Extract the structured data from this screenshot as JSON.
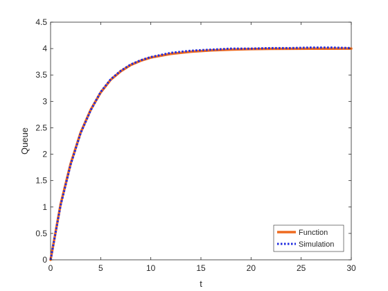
{
  "chart_data": {
    "type": "line",
    "xlabel": "t",
    "ylabel": "Queue",
    "xlim": [
      0,
      30
    ],
    "ylim": [
      0,
      4.5
    ],
    "x_ticks": [
      "0",
      "5",
      "10",
      "15",
      "20",
      "25",
      "30"
    ],
    "y_ticks": [
      "0",
      "0.5",
      "1",
      "1.5",
      "2",
      "2.5",
      "3",
      "3.5",
      "4",
      "4.5"
    ],
    "grid": false,
    "legend_position": "bottom-right",
    "x": [
      0,
      1,
      2,
      3,
      4,
      5,
      6,
      7,
      8,
      9,
      10,
      12,
      14,
      16,
      18,
      20,
      22,
      24,
      26,
      28,
      30
    ],
    "series": [
      {
        "name": "Function",
        "color": "#EE6A1F",
        "style": "solid",
        "values": [
          0,
          1.05,
          1.82,
          2.41,
          2.84,
          3.17,
          3.41,
          3.57,
          3.69,
          3.77,
          3.83,
          3.9,
          3.94,
          3.965,
          3.98,
          3.99,
          3.995,
          3.997,
          3.998,
          3.999,
          4.0
        ]
      },
      {
        "name": "Simulation",
        "color": "#1F2BE0",
        "style": "dotted",
        "values": [
          0,
          1.03,
          1.8,
          2.4,
          2.83,
          3.18,
          3.42,
          3.58,
          3.7,
          3.78,
          3.84,
          3.92,
          3.96,
          3.98,
          4.0,
          4.0,
          4.01,
          4.01,
          4.02,
          4.02,
          4.01
        ]
      }
    ]
  }
}
